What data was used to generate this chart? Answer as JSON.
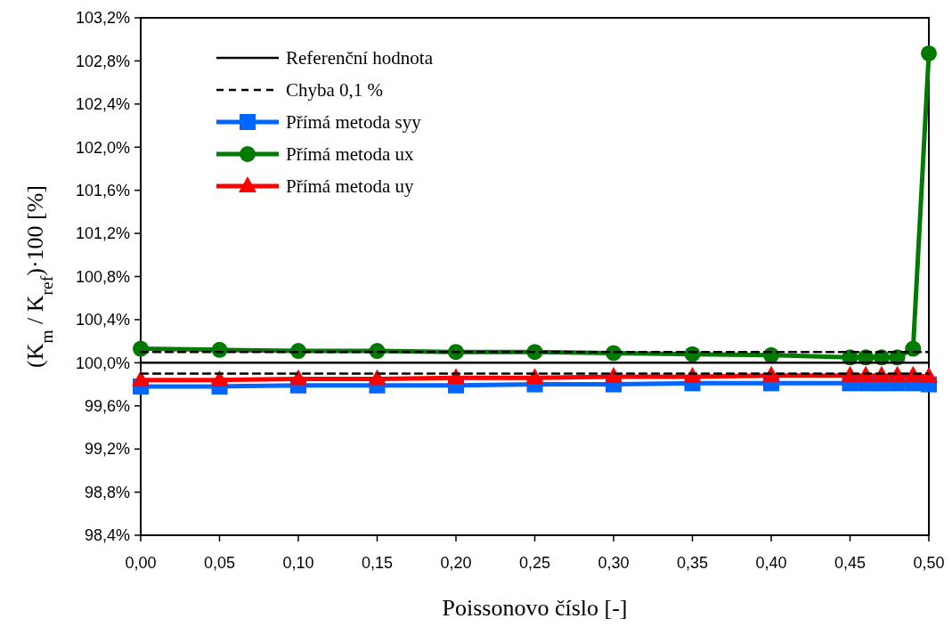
{
  "chart_data": {
    "type": "line",
    "xlabel": "Poissonovo číslo [-]",
    "ylabel": "(K$_{m}$ / K$_{ref}$)·100 [%]",
    "xlim": [
      0,
      0.5
    ],
    "ylim": [
      98.4,
      103.2
    ],
    "xticks": [
      {
        "value": 0,
        "label": "0,00"
      },
      {
        "value": 0.05,
        "label": "0,05"
      },
      {
        "value": 0.1,
        "label": "0,10"
      },
      {
        "value": 0.15,
        "label": "0,15"
      },
      {
        "value": 0.2,
        "label": "0,20"
      },
      {
        "value": 0.25,
        "label": "0,25"
      },
      {
        "value": 0.3,
        "label": "0,30"
      },
      {
        "value": 0.35,
        "label": "0,35"
      },
      {
        "value": 0.4,
        "label": "0,40"
      },
      {
        "value": 0.45,
        "label": "0,45"
      },
      {
        "value": 0.5,
        "label": "0,50"
      }
    ],
    "yticks": [
      {
        "value": 98.4,
        "label": "98,4%"
      },
      {
        "value": 98.8,
        "label": "98,8%"
      },
      {
        "value": 99.2,
        "label": "99,2%"
      },
      {
        "value": 99.6,
        "label": "99,6%"
      },
      {
        "value": 100,
        "label": "100,0%"
      },
      {
        "value": 100.4,
        "label": "100,4%"
      },
      {
        "value": 100.8,
        "label": "100,8%"
      },
      {
        "value": 101.2,
        "label": "101,2%"
      },
      {
        "value": 101.6,
        "label": "101,6%"
      },
      {
        "value": 102,
        "label": "102,0%"
      },
      {
        "value": 102.4,
        "label": "102,4%"
      },
      {
        "value": 102.8,
        "label": "102,8%"
      },
      {
        "value": 103.2,
        "label": "103,2%"
      }
    ],
    "grid": false,
    "legend": "top left",
    "series": [
      {
        "name": "Referenční hodnota",
        "color": "#000000",
        "marker": "none",
        "line_style": "solid",
        "x": [
          0,
          0.5
        ],
        "values": [
          100,
          100
        ]
      },
      {
        "name": "Chyba 0,1 %",
        "color": "#000000",
        "marker": "none",
        "line_style": "dashed",
        "x": [
          0,
          0.5
        ],
        "values": [
          100.1,
          100.1
        ]
      },
      {
        "color": "#000000",
        "marker": "none",
        "line_style": "dashed",
        "x": [
          0,
          0.5
        ],
        "values": [
          99.9,
          99.9
        ]
      },
      {
        "name": "Přímá metoda syy",
        "color": "#0066ff",
        "marker": "square",
        "line_style": "solid",
        "x": [
          0,
          0.05,
          0.1,
          0.15,
          0.2,
          0.25,
          0.3,
          0.35,
          0.4,
          0.45,
          0.46,
          0.47,
          0.48,
          0.49,
          0.5
        ],
        "values": [
          99.78,
          99.78,
          99.79,
          99.79,
          99.79,
          99.8,
          99.8,
          99.81,
          99.81,
          99.81,
          99.81,
          99.81,
          99.81,
          99.81,
          99.8
        ]
      },
      {
        "name": "Přímá metoda ux",
        "color": "#007a00",
        "marker": "circle",
        "line_style": "solid",
        "x": [
          0,
          0.05,
          0.1,
          0.15,
          0.2,
          0.25,
          0.3,
          0.35,
          0.4,
          0.45,
          0.46,
          0.47,
          0.48,
          0.49,
          0.5
        ],
        "values": [
          100.13,
          100.12,
          100.11,
          100.11,
          100.1,
          100.1,
          100.09,
          100.08,
          100.07,
          100.05,
          100.05,
          100.05,
          100.05,
          100.13,
          102.87
        ]
      },
      {
        "name": "Přímá metoda uy",
        "color": "#ff0000",
        "marker": "triangle",
        "line_style": "solid",
        "x": [
          0,
          0.05,
          0.1,
          0.15,
          0.2,
          0.25,
          0.3,
          0.35,
          0.4,
          0.45,
          0.46,
          0.47,
          0.48,
          0.49,
          0.5
        ],
        "values": [
          99.84,
          99.84,
          99.85,
          99.85,
          99.86,
          99.86,
          99.87,
          99.87,
          99.88,
          99.88,
          99.88,
          99.88,
          99.88,
          99.88,
          99.87
        ]
      }
    ]
  }
}
